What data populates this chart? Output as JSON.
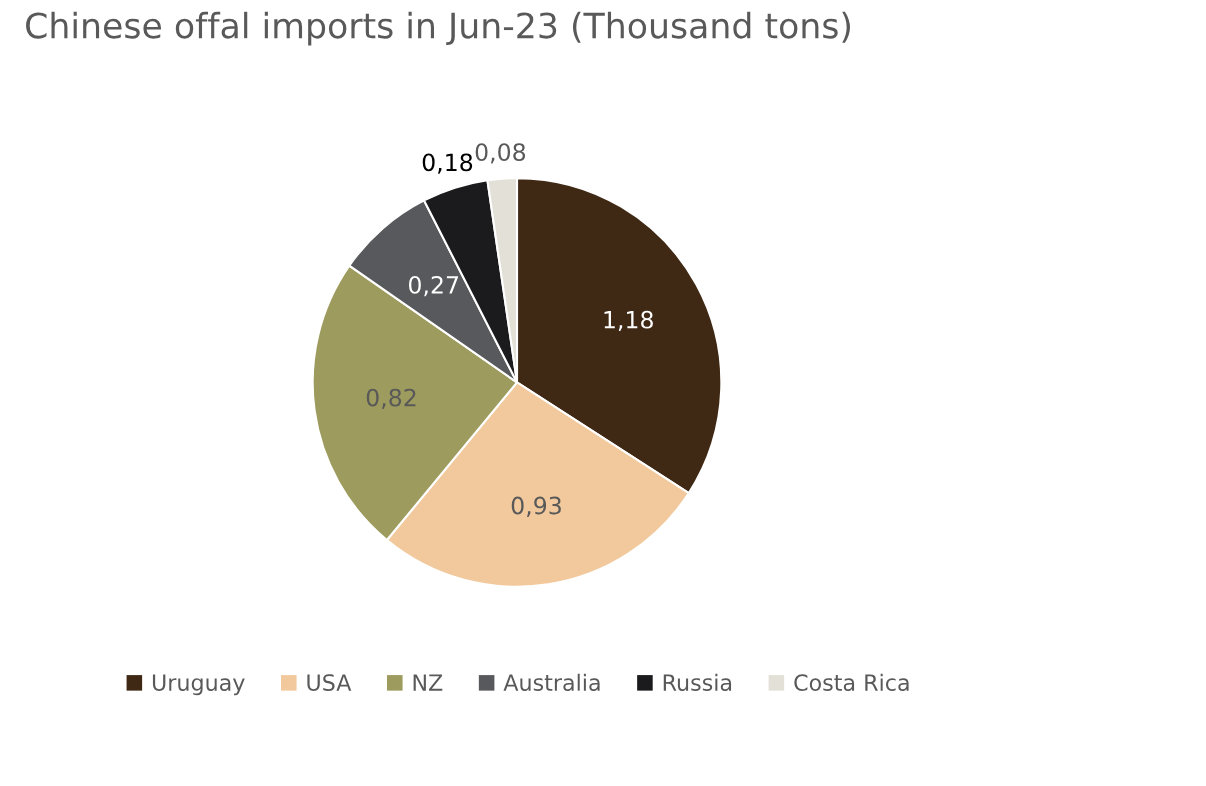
{
  "chart_data": {
    "type": "pie",
    "title": "Chinese offal imports in Jun-23 (Thousand tons)",
    "categories": [
      "Uruguay",
      "USA",
      "NZ",
      "Australia",
      "Russia",
      "Costa Rica"
    ],
    "values": [
      1.18,
      0.93,
      0.82,
      0.27,
      0.18,
      0.08
    ],
    "value_labels": [
      "1,18",
      "0,93",
      "0,82",
      "0,27",
      "0,18",
      "0,08"
    ],
    "colors": [
      "#3f2915",
      "#f2c99c",
      "#9d9b5d",
      "#58595c",
      "#1b1b1d",
      "#e3e0d7"
    ],
    "legend": "bottom"
  }
}
